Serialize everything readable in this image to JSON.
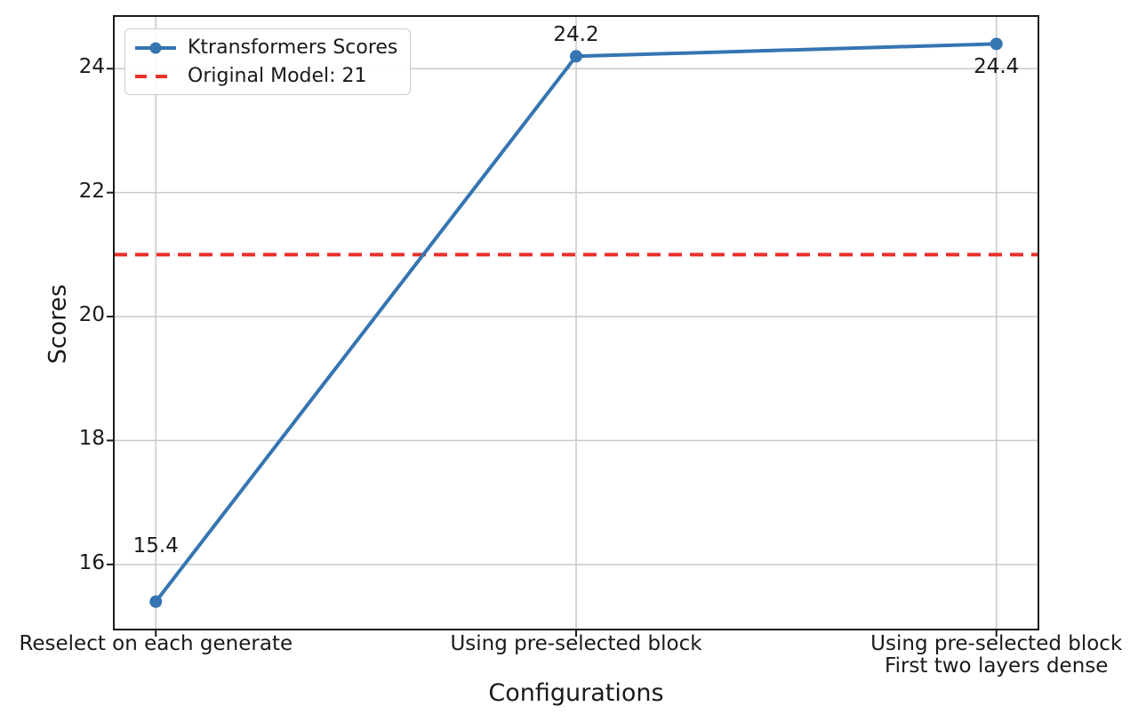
{
  "figure": {
    "background": "#ffffff"
  },
  "chart_data": {
    "type": "line",
    "title": "",
    "xlabel": "Configurations",
    "ylabel": "Scores",
    "categories": [
      "Reselect on each generate",
      "Using pre-selected block",
      "Using pre-selected block\nFirst two layers dense"
    ],
    "series": [
      {
        "name": "Ktransformers Scores",
        "values": [
          15.4,
          24.2,
          24.4
        ],
        "color": "#3575b1",
        "marker": "circle",
        "line_width": 4
      }
    ],
    "reference_line": {
      "label": "Original Model: 21",
      "value": 21,
      "color": "#e8302a",
      "style": "dashed",
      "line_width": 4
    },
    "point_labels": [
      "15.4",
      "24.2",
      "24.4"
    ],
    "yticks": [
      "16",
      "18",
      "20",
      "22",
      "24"
    ],
    "ytick_values": [
      16,
      18,
      20,
      22,
      24
    ],
    "ylim": [
      14.95,
      24.85
    ],
    "grid": true,
    "legend": {
      "position": "upper-left",
      "entries": [
        {
          "label": "Ktransformers Scores",
          "color": "#3575b1",
          "style": "line-marker"
        },
        {
          "label": "Original Model: 21",
          "color": "#e8302a",
          "style": "dashed"
        }
      ]
    },
    "colors": {
      "grid": "#c9c9c9",
      "spine": "#1a1a1a",
      "text": "#1a1a1a"
    }
  }
}
